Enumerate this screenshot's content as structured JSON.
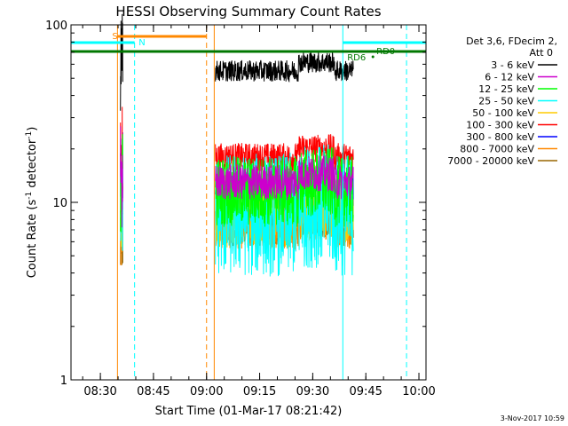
{
  "chart_data": {
    "type": "line",
    "title": "HESSI Observing Summary Count Rates",
    "xlabel": "Start Time (01-Mar-17 08:21:42)",
    "ylabel_main": "Count Rate (s",
    "ylabel_sup1": "-1",
    "ylabel_mid": " detector",
    "ylabel_sup2": "-1",
    "ylabel_end": ")",
    "yscale": "log",
    "ylim": [
      1,
      100
    ],
    "xlim": [
      "08:21:42",
      "10:02:00"
    ],
    "x_ticks": [
      "08:30",
      "08:45",
      "09:00",
      "09:15",
      "09:30",
      "09:45",
      "10:00"
    ],
    "y_ticks": [
      "1",
      "10",
      "100"
    ],
    "legend": {
      "header": [
        "Det 3,6, FDecim 2,",
        "Att 0"
      ],
      "entries": [
        {
          "label": "3 - 6 keV",
          "color": "#000000"
        },
        {
          "label": "6 - 12 keV",
          "color": "#cc00cc"
        },
        {
          "label": "12 - 25 keV",
          "color": "#00ff00"
        },
        {
          "label": "25 - 50 keV",
          "color": "#00ffff"
        },
        {
          "label": "50 - 100 keV",
          "color": "#ffcc00"
        },
        {
          "label": "100 - 300 keV",
          "color": "#ff0000"
        },
        {
          "label": "300 - 800 keV",
          "color": "#0000ff"
        },
        {
          "label": "800 - 7000 keV",
          "color": "#ff8800"
        },
        {
          "label": "7000 - 20000 keV",
          "color": "#996600"
        }
      ]
    },
    "flags": {
      "s_label": "S",
      "n_label": "N",
      "rd0_label": "RD0",
      "rd6_label": "RD6"
    },
    "series": [
      {
        "name": "3 - 6 keV",
        "color": "#000000",
        "level": 55,
        "spread": 0.06
      },
      {
        "name": "6 - 12 keV",
        "color": "#cc00cc",
        "level": 13,
        "spread": 0.1
      },
      {
        "name": "12 - 25 keV",
        "color": "#00ff00",
        "level": 11.5,
        "spread": 0.2
      },
      {
        "name": "25 - 50 keV",
        "color": "#00ffff",
        "level": 8.5,
        "spread": 0.35
      },
      {
        "name": "50 - 100 keV",
        "color": "#ffcc00",
        "level": 9,
        "spread": 0.22
      },
      {
        "name": "100 - 300 keV",
        "color": "#ff0000",
        "level": 18,
        "spread": 0.08
      },
      {
        "name": "300 - 800 keV",
        "color": "#0000ff",
        "level": 12,
        "spread": 0.1
      },
      {
        "name": "800 - 7000 keV",
        "color": "#ff8800",
        "level": 7.2,
        "spread": 0.12
      },
      {
        "name": "7000 - 20000 keV",
        "color": "#996600",
        "level": 8,
        "spread": 0.15
      }
    ],
    "footer_date": "3-Nov-2017 10:59"
  }
}
